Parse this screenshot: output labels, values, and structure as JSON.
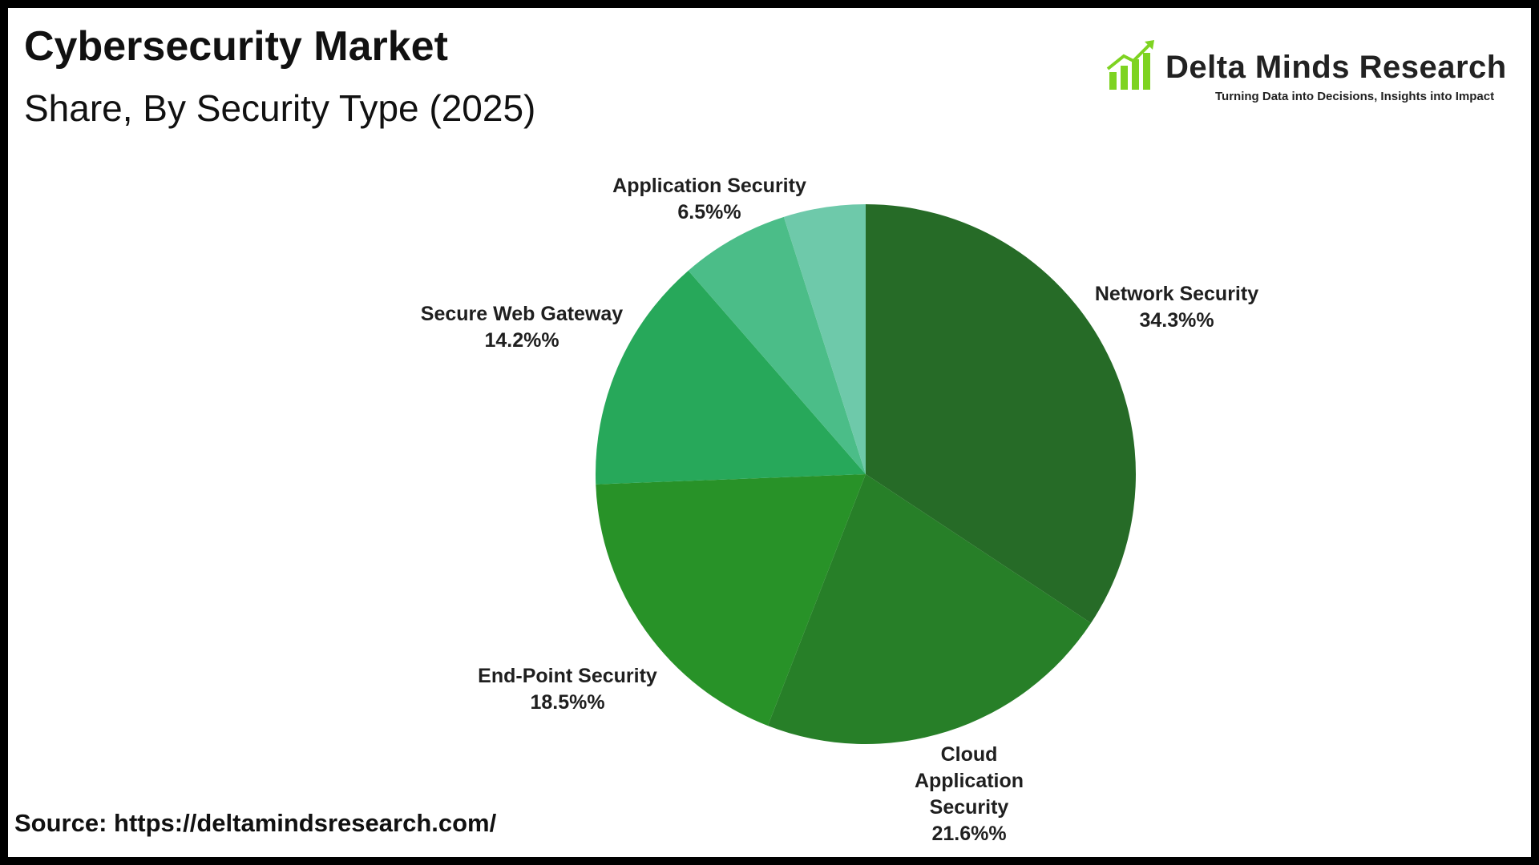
{
  "header": {
    "title": "Cybersecurity Market",
    "subtitle": "Share, By Security Type (2025)"
  },
  "brand": {
    "name": "Delta Minds Research",
    "tagline": "Turning Data into Decisions, Insights into Impact",
    "logo_icon": "bar-chart-growth-icon",
    "logo_color": "#7ed321"
  },
  "footer": {
    "source": "Source: https://deltamindsresearch.com/"
  },
  "chart_data": {
    "type": "pie",
    "start_angle_deg": 0,
    "direction": "clockwise",
    "slices": [
      {
        "label": "Network Security",
        "label_lines": [
          "Network Security"
        ],
        "value": 34.3,
        "value_text": "34.3%%",
        "color": "#266b27"
      },
      {
        "label": "Cloud Application Security",
        "label_lines": [
          "Cloud",
          "Application",
          "Security"
        ],
        "value": 21.6,
        "value_text": "21.6%%",
        "color": "#277f28"
      },
      {
        "label": "End-Point Security",
        "label_lines": [
          "End-Point Security"
        ],
        "value": 18.5,
        "value_text": "18.5%%",
        "color": "#289228"
      },
      {
        "label": "Secure Web Gateway",
        "label_lines": [
          "Secure Web Gateway"
        ],
        "value": 14.2,
        "value_text": "14.2%%",
        "color": "#27a85a"
      },
      {
        "label": "Application Security",
        "label_lines": [
          "Application Security"
        ],
        "value": 6.5,
        "value_text": "6.5%%",
        "color": "#4bbd88"
      },
      {
        "label": "",
        "label_lines": [],
        "value": 4.9,
        "value_text": "",
        "color": "#6ec9aa"
      }
    ]
  }
}
